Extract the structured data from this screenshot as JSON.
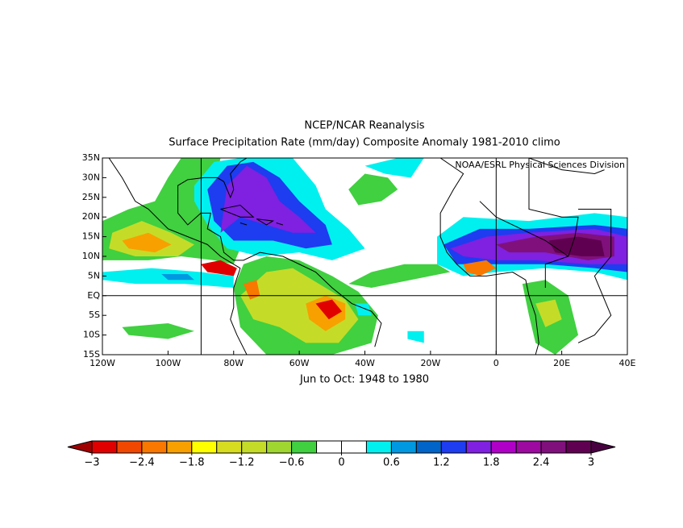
{
  "header": {
    "title": "NCEP/NCAR Reanalysis",
    "subtitle": "Surface Precipitation Rate (mm/day) Composite Anomaly 1981-2010 climo",
    "attribution": "NOAA/ESRL Physical Sciences Division",
    "period": "Jun to Oct: 1948 to 1980"
  },
  "map": {
    "xlim": [
      -120,
      40
    ],
    "ylim": [
      -15,
      35
    ],
    "xticks": [
      {
        "value": -120,
        "label": "120W"
      },
      {
        "value": -100,
        "label": "100W"
      },
      {
        "value": -80,
        "label": "80W"
      },
      {
        "value": -60,
        "label": "60W"
      },
      {
        "value": -40,
        "label": "40W"
      },
      {
        "value": -20,
        "label": "20W"
      },
      0,
      {
        "value": 20,
        "label": "20E"
      },
      {
        "value": 40,
        "label": "40E"
      }
    ],
    "yticks": [
      {
        "value": 35,
        "label": "35N"
      },
      {
        "value": 30,
        "label": "30N"
      },
      {
        "value": 25,
        "label": "25N"
      },
      {
        "value": 20,
        "label": "20N"
      },
      {
        "value": 15,
        "label": "15N"
      },
      {
        "value": 10,
        "label": "10N"
      },
      {
        "value": 5,
        "label": "5N"
      },
      {
        "value": 0,
        "label": "EQ"
      },
      {
        "value": -5,
        "label": "5S"
      },
      {
        "value": -10,
        "label": "10S"
      },
      {
        "value": -15,
        "label": "15S"
      }
    ]
  },
  "colorbar": {
    "range": [
      -3,
      3
    ],
    "ticks": [
      {
        "value": -3,
        "label": "−3"
      },
      {
        "value": -2.4,
        "label": "−2.4"
      },
      {
        "value": -1.8,
        "label": "−1.8"
      },
      {
        "value": -1.2,
        "label": "−1.2"
      },
      {
        "value": -0.6,
        "label": "−0.6"
      },
      0,
      0.6,
      1.2,
      1.8,
      2.4,
      3
    ],
    "colors": [
      "#a00000",
      "#e00000",
      "#f04800",
      "#f87800",
      "#f8a000",
      "#ffff00",
      "#d8dc20",
      "#c4dc28",
      "#a0d630",
      "#40d040",
      "#ffffff",
      "#ffffff",
      "#00f0f0",
      "#0098e0",
      "#0064c8",
      "#1e3cf0",
      "#8020e0",
      "#b000c8",
      "#9c0aa0",
      "#80107c",
      "#600050",
      "#480040"
    ]
  }
}
